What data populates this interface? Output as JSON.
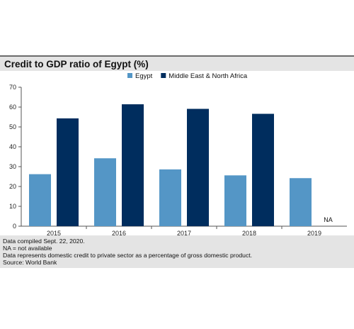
{
  "chart_data": {
    "type": "bar",
    "title": "Credit to GDP ratio of Egypt (%)",
    "categories": [
      "2015",
      "2016",
      "2017",
      "2018",
      "2019"
    ],
    "series": [
      {
        "name": "Egypt",
        "color": "#5496c6",
        "values": [
          26.2,
          34.2,
          28.6,
          25.6,
          24.2
        ]
      },
      {
        "name": "Middle East & North Africa",
        "color": "#002d5e",
        "values": [
          54.3,
          61.4,
          59.1,
          56.6,
          null
        ]
      }
    ],
    "missing_label": "NA",
    "ylim": [
      0,
      70
    ],
    "yticks": [
      0,
      10,
      20,
      30,
      40,
      50,
      60,
      70
    ],
    "grid": false,
    "legend_position": "top-center"
  },
  "notes": [
    "Data compiled Sept. 22, 2020.",
    "NA = not available",
    "Data represents domestic credit to private sector as a percentage of gross domestic product.",
    "Source: World Bank"
  ]
}
